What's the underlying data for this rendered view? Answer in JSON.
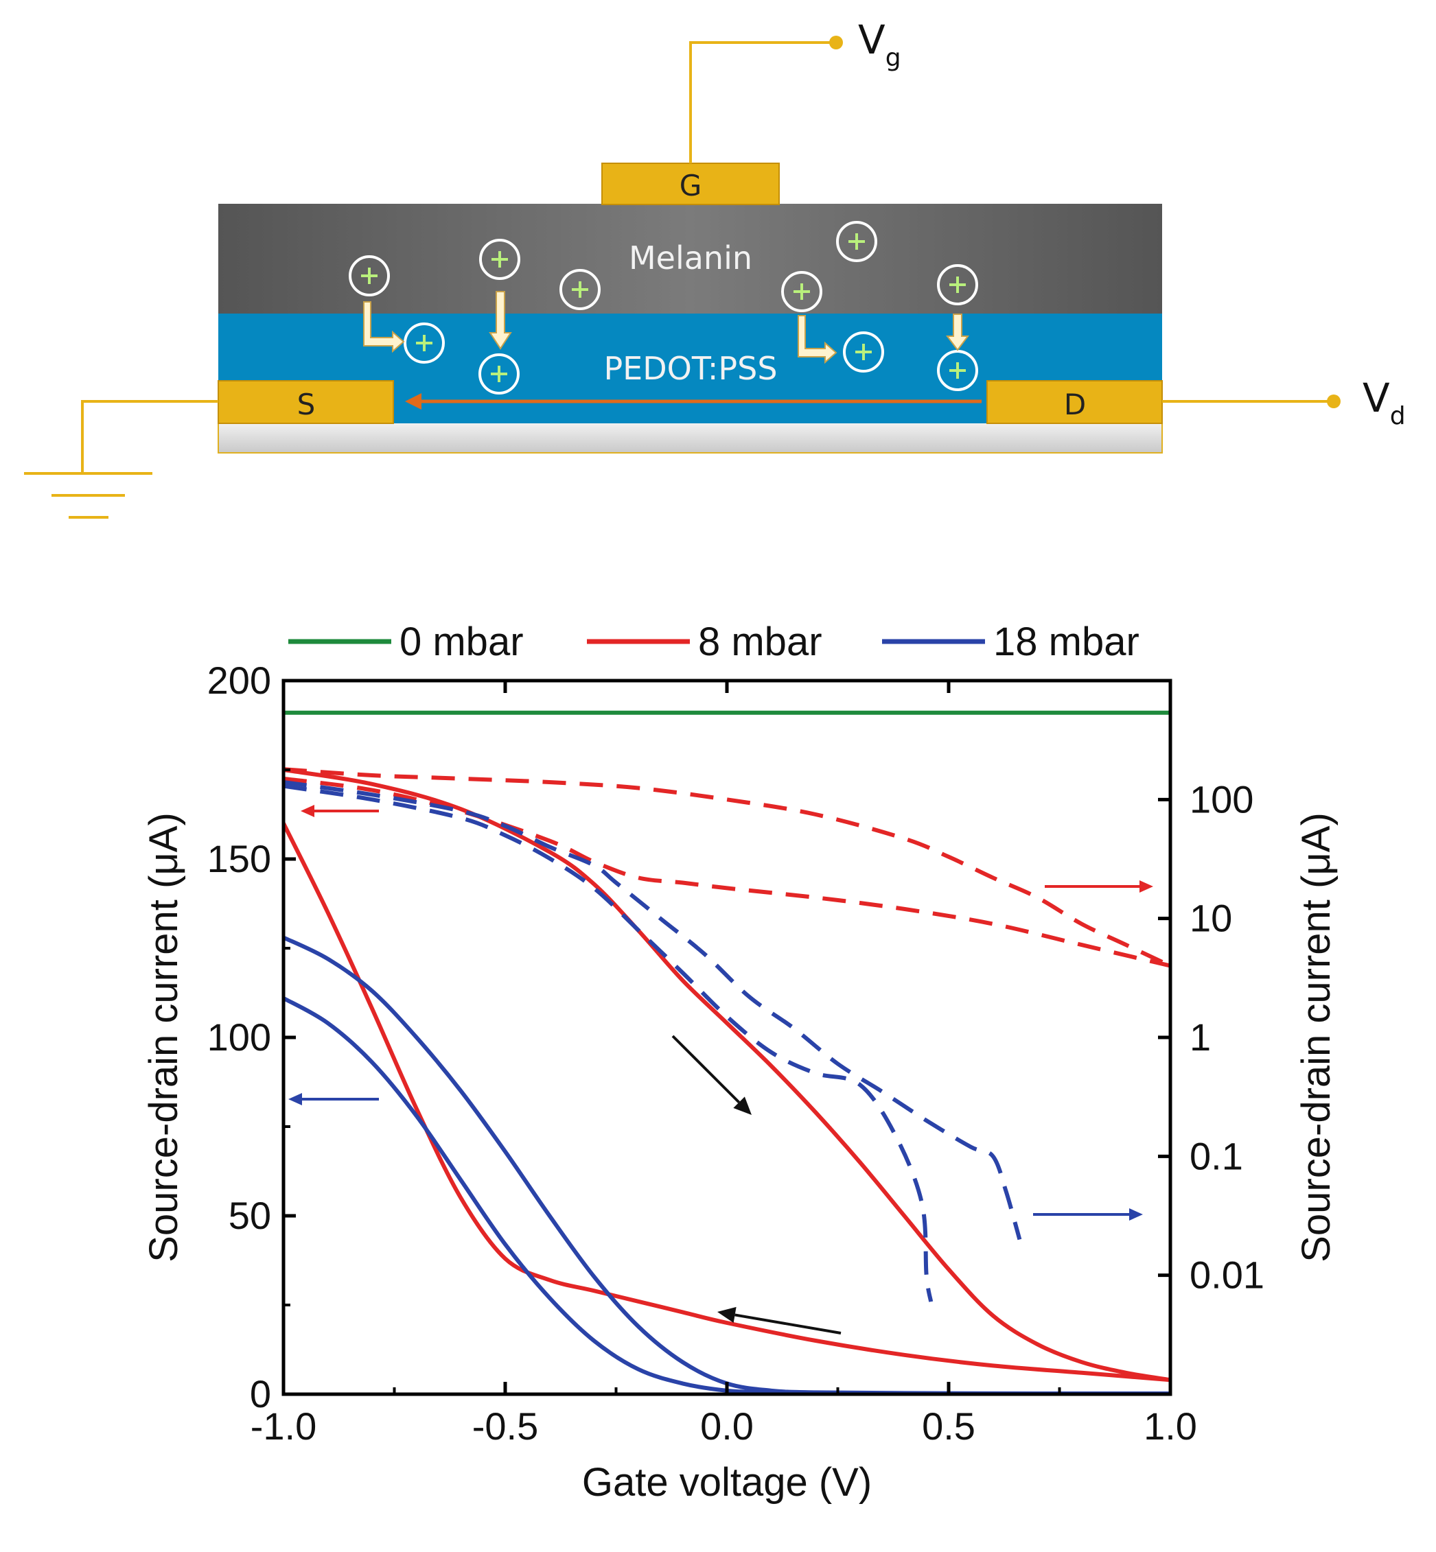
{
  "schematic": {
    "gate_label": "G",
    "source_label": "S",
    "drain_label": "D",
    "top_layer_label": "Melanin",
    "channel_layer_label": "PEDOT:PSS",
    "vg_label": "V",
    "vg_sub": "g",
    "vd_label": "V",
    "vd_sub": "d",
    "ion_symbol": "+"
  },
  "chart_data": {
    "type": "line",
    "xlabel": "Gate voltage (V)",
    "ylabel_left": "Source-drain current (μA)",
    "ylabel_right": "Source-drain current (μA)",
    "xlim": [
      -1.0,
      1.0
    ],
    "ylim_left": [
      0,
      200
    ],
    "ylim_right_log": [
      0.001,
      1000
    ],
    "x_ticks": [
      "-1.0",
      "-0.5",
      "0.0",
      "0.5",
      "1.0"
    ],
    "y_ticks_left": [
      "0",
      "50",
      "100",
      "150",
      "200"
    ],
    "y_ticks_right": [
      "0.01",
      "0.1",
      "1",
      "10",
      "100"
    ],
    "legend": [
      "0 mbar",
      "8 mbar",
      "18 mbar"
    ],
    "colors": {
      "0 mbar": "#1e8a3c",
      "8 mbar": "#e32626",
      "18 mbar": "#2a43a8",
      "arrow": "#111111"
    },
    "series": [
      {
        "name": "0 mbar",
        "axis": "left",
        "style": "solid",
        "x": [
          -1.0,
          1.0
        ],
        "y": [
          191,
          191
        ]
      },
      {
        "name": "8 mbar",
        "axis": "left",
        "style": "solid",
        "branch": "forward",
        "x": [
          -1.0,
          -0.8,
          -0.6,
          -0.4,
          -0.3,
          -0.2,
          -0.1,
          0.0,
          0.1,
          0.2,
          0.3,
          0.4,
          0.5,
          0.6,
          0.7,
          0.8,
          0.9,
          1.0
        ],
        "y": [
          175,
          171,
          164,
          152,
          143,
          130,
          116,
          104,
          92,
          79,
          65,
          50,
          35,
          22,
          14,
          9,
          6,
          4
        ]
      },
      {
        "name": "8 mbar",
        "axis": "left",
        "style": "solid",
        "branch": "reverse",
        "x": [
          -1.0,
          -0.9,
          -0.8,
          -0.7,
          -0.6,
          -0.5,
          -0.4,
          -0.3,
          -0.2,
          -0.1,
          0.0,
          0.2,
          0.4,
          0.6,
          0.8,
          1.0
        ],
        "y": [
          160,
          135,
          108,
          80,
          55,
          38,
          32,
          29,
          26,
          23,
          20,
          15,
          11,
          8,
          6,
          4
        ]
      },
      {
        "name": "18 mbar",
        "axis": "left",
        "style": "solid",
        "branch": "outer",
        "x": [
          -1.0,
          -0.9,
          -0.8,
          -0.7,
          -0.6,
          -0.5,
          -0.4,
          -0.3,
          -0.2,
          -0.1,
          0.0,
          0.1,
          0.2,
          0.4,
          0.7,
          1.0
        ],
        "y": [
          128,
          122,
          113,
          100,
          85,
          68,
          50,
          33,
          19,
          9,
          3,
          1,
          0.5,
          0.3,
          0.2,
          0.2
        ]
      },
      {
        "name": "18 mbar",
        "axis": "left",
        "style": "solid",
        "branch": "inner",
        "x": [
          -1.0,
          -0.9,
          -0.8,
          -0.7,
          -0.6,
          -0.5,
          -0.4,
          -0.3,
          -0.2,
          -0.1,
          0.0,
          0.1,
          0.2,
          0.4,
          0.7,
          1.0
        ],
        "y": [
          111,
          104,
          93,
          78,
          60,
          42,
          27,
          15,
          7,
          3,
          1,
          0.5,
          0.3,
          0.2,
          0.2,
          0.2
        ]
      },
      {
        "name": "8 mbar",
        "axis": "right",
        "style": "dashed",
        "branch": "upper",
        "x": [
          -1.0,
          -0.8,
          -0.6,
          -0.4,
          -0.2,
          0.0,
          0.2,
          0.4,
          0.5,
          0.6,
          0.7,
          0.8,
          0.9,
          1.0
        ],
        "y": [
          180,
          160,
          150,
          140,
          125,
          100,
          75,
          47,
          33,
          22,
          15,
          9,
          6,
          4
        ]
      },
      {
        "name": "8 mbar",
        "axis": "right",
        "style": "dashed",
        "branch": "lower",
        "x": [
          -1.0,
          -0.8,
          -0.6,
          -0.4,
          -0.3,
          -0.2,
          -0.1,
          0.0,
          0.2,
          0.4,
          0.6,
          0.8,
          1.0
        ],
        "y": [
          150,
          120,
          80,
          45,
          30,
          22,
          20,
          18,
          15,
          12,
          9,
          6,
          4
        ]
      },
      {
        "name": "18 mbar",
        "axis": "right",
        "style": "dashed",
        "branch": "left",
        "x": [
          -1.0,
          -0.8,
          -0.6,
          -0.5,
          -0.4,
          -0.3,
          -0.2,
          -0.1,
          0.0,
          0.1,
          0.2,
          0.3,
          0.38,
          0.44,
          0.45,
          0.46
        ],
        "y": [
          130,
          100,
          70,
          50,
          32,
          18,
          8,
          3.5,
          1.5,
          0.75,
          0.5,
          0.4,
          0.15,
          0.04,
          0.01,
          0.006
        ]
      },
      {
        "name": "18 mbar",
        "axis": "right",
        "style": "dashed",
        "branch": "right",
        "x": [
          -1.0,
          -0.8,
          -0.6,
          -0.5,
          -0.4,
          -0.3,
          -0.25,
          -0.15,
          -0.05,
          0.05,
          0.15,
          0.25,
          0.35,
          0.45,
          0.55,
          0.6,
          0.63,
          0.66
        ],
        "y": [
          140,
          110,
          80,
          60,
          40,
          28,
          20,
          10,
          5,
          2.2,
          1.2,
          0.6,
          0.35,
          0.2,
          0.12,
          0.1,
          0.05,
          0.02
        ]
      }
    ],
    "annotations": [
      {
        "type": "axis-arrow",
        "target": "left",
        "series": "8 mbar"
      },
      {
        "type": "axis-arrow",
        "target": "left",
        "series": "18 mbar"
      },
      {
        "type": "axis-arrow",
        "target": "right",
        "series": "8 mbar"
      },
      {
        "type": "axis-arrow",
        "target": "right",
        "series": "18 mbar"
      },
      {
        "type": "sweep-arrow",
        "direction": "forward"
      },
      {
        "type": "sweep-arrow",
        "direction": "reverse"
      }
    ]
  }
}
